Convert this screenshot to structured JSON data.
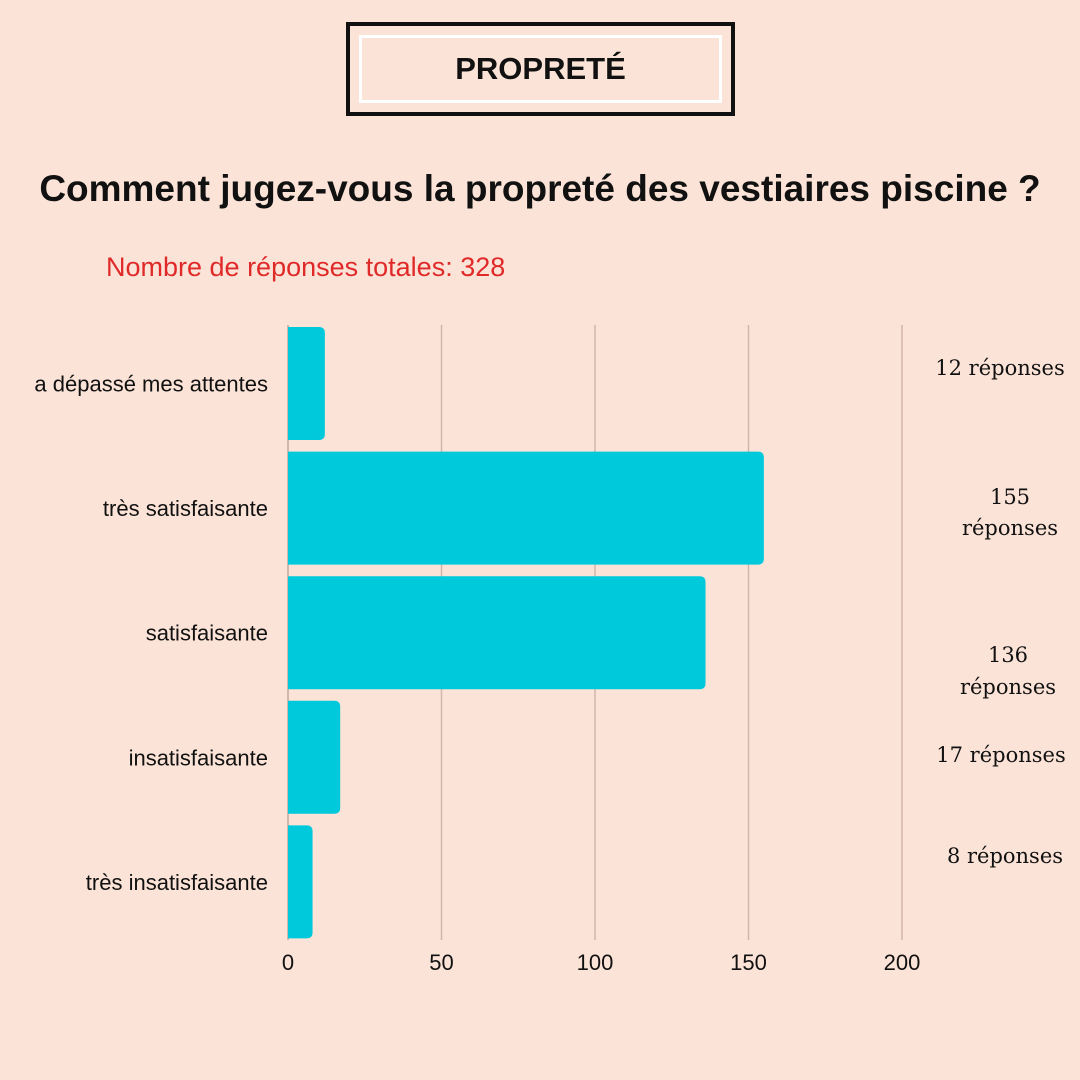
{
  "badge": {
    "title": "PROPRETÉ"
  },
  "question": "Comment jugez-vous la propreté des vestiaires piscine ?",
  "total_text": "Nombre de réponses totales: 328",
  "colors": {
    "background": "#fbe3d7",
    "bar": "#00c9dc",
    "grid": "#d3b6ab",
    "total_text": "#e02a2a"
  },
  "chart_data": {
    "type": "bar",
    "orientation": "horizontal",
    "categories": [
      "a dépassé mes attentes",
      "très satisfaisante",
      "satisfaisante",
      "insatisfaisante",
      "très insatisfaisante"
    ],
    "values": [
      12,
      155,
      136,
      17,
      8
    ],
    "xlim": [
      0,
      200
    ],
    "xticks": [
      "0",
      "50",
      "100",
      "150",
      "200"
    ],
    "grid": "vertical",
    "count_labels": [
      [
        "12 réponses"
      ],
      [
        "155",
        "réponses"
      ],
      [
        "136",
        "réponses"
      ],
      [
        "17 réponses"
      ],
      [
        "8 réponses"
      ]
    ]
  }
}
